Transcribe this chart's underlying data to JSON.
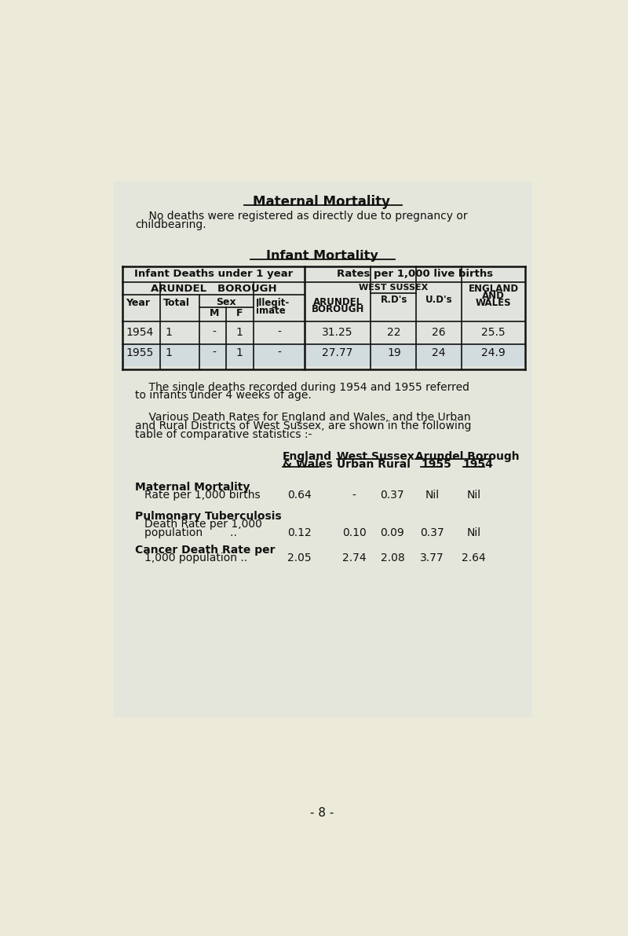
{
  "bg_color": "#eceaD8",
  "text_color": "#111111",
  "title": "Maternal Mortality",
  "subtitle_line1": "    No deaths were registered as directly due to pregnancy or",
  "subtitle_line2": "childbearing.",
  "infant_title": "Infant Mortality",
  "note_line1": "    The single deaths recorded during 1954 and 1955 referred",
  "note_line2": "to infants under 4 weeks of age.",
  "various_line1": "    Various Death Rates for England and Wales, and the Urban",
  "various_line2": "and Rural Districts of West Sussex, are shown in the following",
  "various_line3": "table of comparative statistics :-",
  "infant_rows": [
    [
      "1954",
      "1",
      "-",
      "1",
      "-",
      "31.25",
      "22",
      "26",
      "25.5"
    ],
    [
      "1955",
      "1",
      "-",
      "1",
      "-",
      "27.77",
      "19",
      "24",
      "24.9"
    ]
  ],
  "page_number": "- 8 -",
  "panel_bg": "#ccd8e8",
  "panel_alpha": 0.22,
  "highlight_bg": "#b8cce0",
  "highlight_alpha": 0.35
}
